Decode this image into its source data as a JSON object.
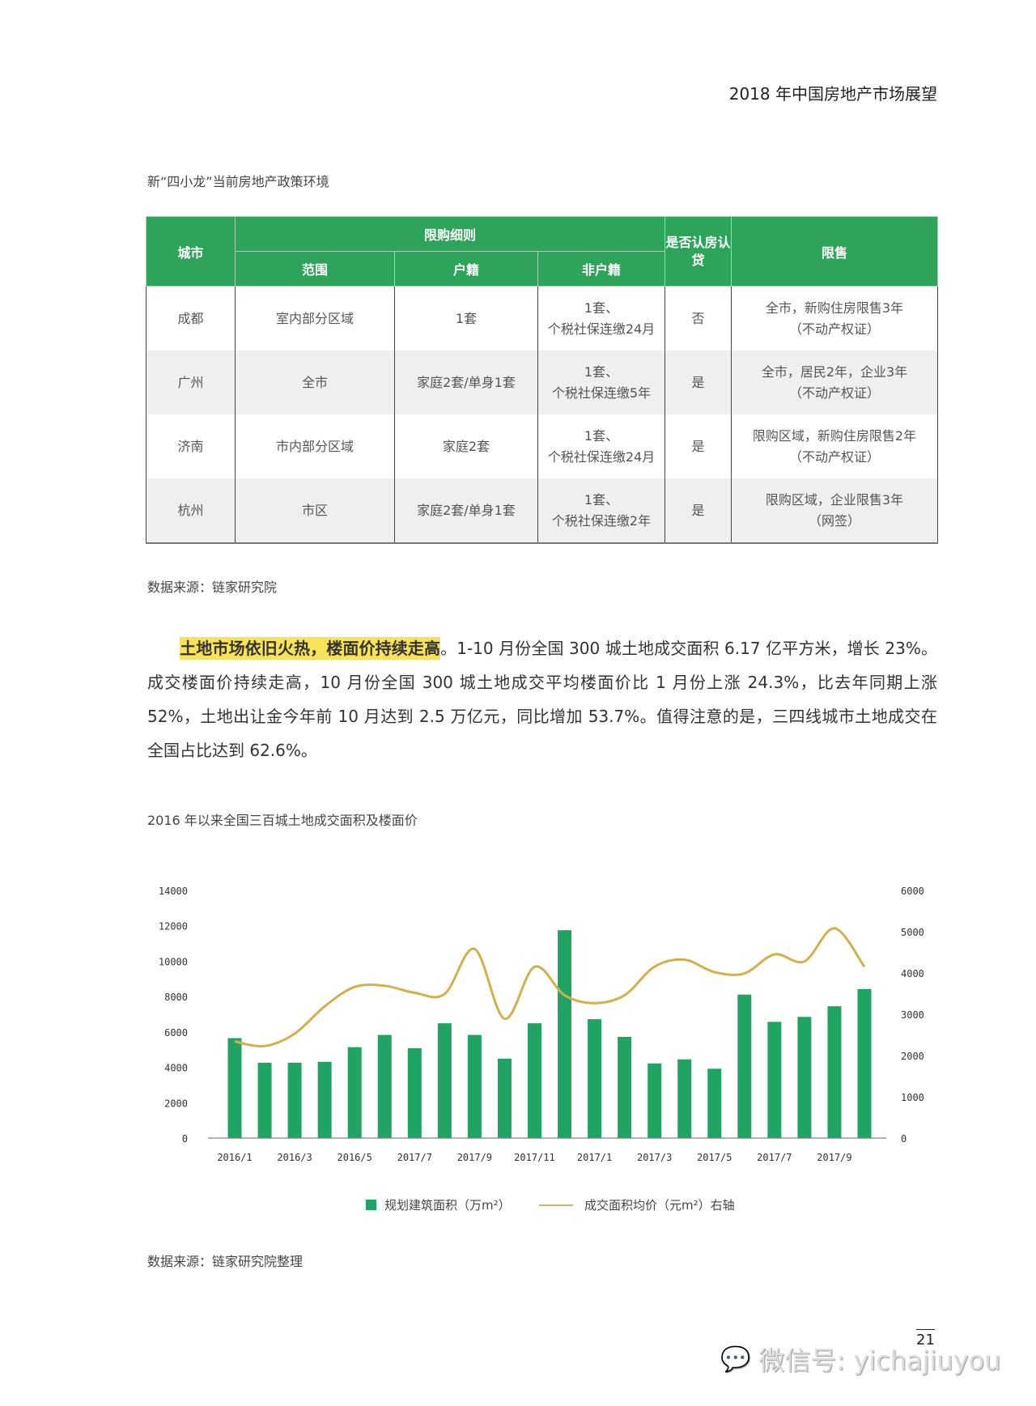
{
  "header": {
    "title": "2018 年中国房地产市场展望"
  },
  "table_caption": "新“四小龙”当前房地产政策环境",
  "table": {
    "headers": {
      "city": "城市",
      "purchase_rules": "限购细则",
      "scope": "范围",
      "local": "户籍",
      "nonlocal": "非户籍",
      "recognize": "是否认房认贷",
      "sale_limit": "限售"
    },
    "rows": [
      {
        "city": "成都",
        "scope": "室内部分区域",
        "local": "1套",
        "nonlocal_1": "1套、",
        "nonlocal_2": "个税社保连缴24月",
        "recognize": "否",
        "sale_1": "全市，新购住房限售3年",
        "sale_2": "（不动产权证）"
      },
      {
        "city": "广州",
        "scope": "全市",
        "local": "家庭2套/单身1套",
        "nonlocal_1": "1套、",
        "nonlocal_2": "个税社保连缴5年",
        "recognize": "是",
        "sale_1": "全市，居民2年，企业3年",
        "sale_2": "（不动产权证）"
      },
      {
        "city": "济南",
        "scope": "市内部分区域",
        "local": "家庭2套",
        "nonlocal_1": "1套、",
        "nonlocal_2": "个税社保连缴24月",
        "recognize": "是",
        "sale_1": "限购区域，新购住房限售2年",
        "sale_2": "（不动产权证）"
      },
      {
        "city": "杭州",
        "scope": "市区",
        "local": "家庭2套/单身1套",
        "nonlocal_1": "1套、",
        "nonlocal_2": "个税社保连缴2年",
        "recognize": "是",
        "sale_1": "限购区域，企业限售3年",
        "sale_2": "（网签）"
      }
    ]
  },
  "source_1": "数据来源：链家研究院",
  "paragraph": {
    "highlight": "土地市场依旧火热，楼面价持续走高",
    "body": "。1-10 月份全国 300 城土地成交面积 6.17 亿平方米，增长 23%。成交楼面价持续走高，10 月份全国 300 城土地成交平均楼面价比 1 月份上涨 24.3%，比去年同期上涨 52%，土地出让金今年前 10 月达到 2.5 万亿元，同比增加 53.7%。值得注意的是，三四线城市土地成交在全国占比达到 62.6%。"
  },
  "chart_caption": "2016 年以来全国三百城土地成交面积及楼面价",
  "chart_data": {
    "type": "bar+line",
    "x_tick_labels": [
      "2016/1",
      "2016/3",
      "2016/5",
      "2017/7",
      "2017/9",
      "2017/11",
      "2017/1",
      "2017/3",
      "2017/5",
      "2017/7",
      "2017/9"
    ],
    "left_axis": {
      "ylim": [
        0,
        14000
      ],
      "ticks": [
        "0",
        "2000",
        "4000",
        "6000",
        "8000",
        "10000",
        "12000",
        "14000"
      ]
    },
    "right_axis": {
      "ylim": [
        0,
        6000
      ],
      "ticks": [
        "0",
        "1000",
        "2000",
        "3000",
        "4000",
        "5000",
        "6000"
      ]
    },
    "series": [
      {
        "name": "规划建筑面积（万m²）",
        "type": "bar",
        "axis": "left",
        "color": "#1fa463",
        "values": [
          5650,
          4260,
          4260,
          4310,
          5140,
          5830,
          5080,
          6490,
          5830,
          4490,
          6490,
          11750,
          6720,
          5720,
          4220,
          4450,
          3920,
          8110,
          6570,
          6850,
          7450,
          8420
        ]
      },
      {
        "name": "成交面积均价（元m²）右轴",
        "type": "line",
        "axis": "right",
        "color": "#d4b04a",
        "values": [
          2340,
          2230,
          2530,
          3190,
          3660,
          3690,
          3520,
          3490,
          4580,
          2890,
          4150,
          3460,
          3270,
          3460,
          4150,
          4320,
          4020,
          3990,
          4450,
          4280,
          5080,
          4150
        ]
      }
    ],
    "grid": false,
    "legend_placement": "bottom"
  },
  "source_2": "数据来源：链家研究院整理",
  "page_number": "21",
  "watermark": "微信号: yichajiuyou"
}
